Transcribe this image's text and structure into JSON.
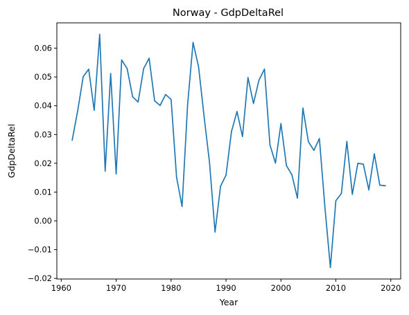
{
  "chart_data": {
    "type": "line",
    "title": "Norway - GdpDeltaRel",
    "xlabel": "Year",
    "ylabel": "GdpDeltaRel",
    "xlim": [
      1959.2,
      2021.8
    ],
    "ylim": [
      -0.0202,
      0.0688
    ],
    "grid": false,
    "legend": "none",
    "color": "#1f77b4",
    "x_ticks": [
      {
        "value": 1960,
        "label": "1960"
      },
      {
        "value": 1970,
        "label": "1970"
      },
      {
        "value": 1980,
        "label": "1980"
      },
      {
        "value": 1990,
        "label": "1990"
      },
      {
        "value": 2000,
        "label": "2000"
      },
      {
        "value": 2010,
        "label": "2010"
      },
      {
        "value": 2020,
        "label": "2020"
      }
    ],
    "y_ticks": [
      {
        "value": -0.02,
        "label": "−0.02"
      },
      {
        "value": -0.01,
        "label": "−0.01"
      },
      {
        "value": 0.0,
        "label": "0.00"
      },
      {
        "value": 0.01,
        "label": "0.01"
      },
      {
        "value": 0.02,
        "label": "0.02"
      },
      {
        "value": 0.03,
        "label": "0.03"
      },
      {
        "value": 0.04,
        "label": "0.04"
      },
      {
        "value": 0.05,
        "label": "0.05"
      },
      {
        "value": 0.06,
        "label": "0.06"
      }
    ],
    "x": [
      1962,
      1963,
      1964,
      1965,
      1966,
      1967,
      1968,
      1969,
      1970,
      1971,
      1972,
      1973,
      1974,
      1975,
      1976,
      1977,
      1978,
      1979,
      1980,
      1981,
      1982,
      1983,
      1984,
      1985,
      1986,
      1987,
      1988,
      1989,
      1990,
      1991,
      1992,
      1993,
      1994,
      1995,
      1996,
      1997,
      1998,
      1999,
      2000,
      2001,
      2002,
      2003,
      2004,
      2005,
      2006,
      2007,
      2008,
      2009,
      2010,
      2011,
      2012,
      2013,
      2014,
      2015,
      2016,
      2017,
      2018,
      2019
    ],
    "series": [
      {
        "values": [
          0.0281,
          0.0383,
          0.0501,
          0.0527,
          0.0384,
          0.0648,
          0.0173,
          0.0512,
          0.0163,
          0.0559,
          0.0529,
          0.0431,
          0.0413,
          0.0529,
          0.0565,
          0.0417,
          0.0401,
          0.0439,
          0.0422,
          0.0151,
          0.005,
          0.0402,
          0.062,
          0.0536,
          0.0364,
          0.0202,
          -0.0039,
          0.012,
          0.0159,
          0.0311,
          0.038,
          0.0293,
          0.0498,
          0.0408,
          0.0489,
          0.0527,
          0.0264,
          0.0201,
          0.0338,
          0.0192,
          0.016,
          0.0079,
          0.0392,
          0.0275,
          0.0245,
          0.0286,
          0.0049,
          -0.0162,
          0.007,
          0.0095,
          0.0276,
          0.0092,
          0.02,
          0.0197,
          0.0108,
          0.0233,
          0.0124,
          0.0122
        ]
      }
    ]
  }
}
